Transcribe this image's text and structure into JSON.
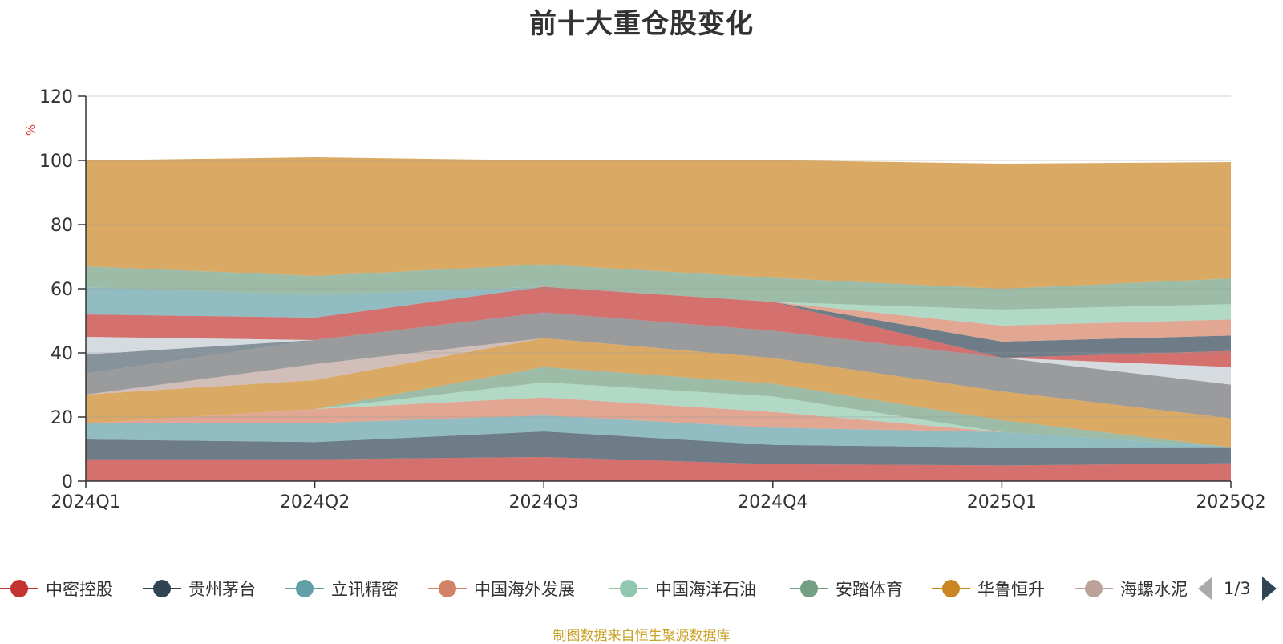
{
  "chart_data": {
    "type": "area",
    "stacked": true,
    "title": "前十大重仓股变化",
    "ylabel": "%",
    "ylim": [
      0,
      120
    ],
    "yticks": [
      0,
      20,
      40,
      60,
      80,
      100,
      120
    ],
    "categories": [
      "2024Q1",
      "2024Q2",
      "2024Q3",
      "2024Q4",
      "2025Q1",
      "2025Q2"
    ],
    "grid": true,
    "legend_position": "bottom",
    "series": [
      {
        "name": "中密控股",
        "color": "#c23531",
        "values": [
          6.8,
          6.8,
          7.5,
          5.3,
          4.9,
          5.6
        ]
      },
      {
        "name": "贵州茅台",
        "color": "#2f4554",
        "values": [
          6.2,
          5.4,
          8.0,
          6.0,
          5.6,
          5.0
        ]
      },
      {
        "name": "立讯精密",
        "color": "#61a0a8",
        "values": [
          5.0,
          5.9,
          5.0,
          5.4,
          4.8,
          0
        ]
      },
      {
        "name": "中国海外发展",
        "color": "#d48265",
        "values": [
          0,
          4.4,
          5.6,
          4.9,
          0,
          0
        ]
      },
      {
        "name": "中国海洋石油",
        "color": "#91c7ae",
        "values": [
          0,
          0,
          4.7,
          4.8,
          0,
          0
        ]
      },
      {
        "name": "安踏体育",
        "color": "#749f83",
        "values": [
          0,
          0,
          4.8,
          4.0,
          3.7,
          0
        ]
      },
      {
        "name": "华鲁恒升",
        "color": "#ca8622",
        "values": [
          9.0,
          9.0,
          9.0,
          8.0,
          9.0,
          9.0
        ]
      },
      {
        "name": "海螺水泥",
        "color": "#bda29a",
        "values": [
          0,
          5.0,
          0,
          0,
          0,
          0
        ]
      },
      {
        "name": "",
        "color": "#6e7074",
        "values": [
          6.5,
          7.5,
          8.0,
          8.5,
          10.5,
          10.5
        ]
      },
      {
        "name": "",
        "color": "#546570",
        "values": [
          6.0,
          0,
          0,
          0,
          0,
          0
        ]
      },
      {
        "name": "",
        "color": "#c4ccd3",
        "values": [
          5.5,
          0,
          0,
          0,
          0,
          5.5
        ]
      },
      {
        "name": "",
        "color": "#c23531",
        "values": [
          7.0,
          7.0,
          8.0,
          9.0,
          0,
          5.0
        ]
      },
      {
        "name": "",
        "color": "#61a0a8",
        "values": [
          8.5,
          7.0,
          0,
          0,
          0,
          0
        ]
      },
      {
        "name": "",
        "color": "#2f4554",
        "values": [
          0,
          0,
          0,
          0,
          5.0,
          4.8
        ]
      },
      {
        "name": "",
        "color": "#d48265",
        "values": [
          0,
          0,
          0,
          0,
          5.0,
          5.0
        ]
      },
      {
        "name": "",
        "color": "#91c7ae",
        "values": [
          0,
          0,
          0,
          0,
          5.0,
          4.8
        ]
      },
      {
        "name": "",
        "color": "#749f83",
        "values": [
          6.5,
          6.0,
          7.0,
          7.5,
          6.5,
          8.0
        ]
      },
      {
        "name": "",
        "color": "#ca8622",
        "values": [
          33.0,
          37.0,
          32.4,
          36.7,
          39.0,
          36.3
        ]
      }
    ]
  },
  "legend": {
    "items": [
      {
        "label": "中密控股",
        "color": "#c23531"
      },
      {
        "label": "贵州茅台",
        "color": "#2f4554"
      },
      {
        "label": "立讯精密",
        "color": "#61a0a8"
      },
      {
        "label": "中国海外发展",
        "color": "#d48265"
      },
      {
        "label": "中国海洋石油",
        "color": "#91c7ae"
      },
      {
        "label": "安踏体育",
        "color": "#749f83"
      },
      {
        "label": "华鲁恒升",
        "color": "#ca8622"
      },
      {
        "label": "海螺水泥",
        "color": "#bda29a"
      }
    ],
    "page": "1/3",
    "prev_icon": "triangle-left-icon",
    "next_icon": "triangle-right-icon"
  },
  "source_note": "制图数据来自恒生聚源数据库"
}
